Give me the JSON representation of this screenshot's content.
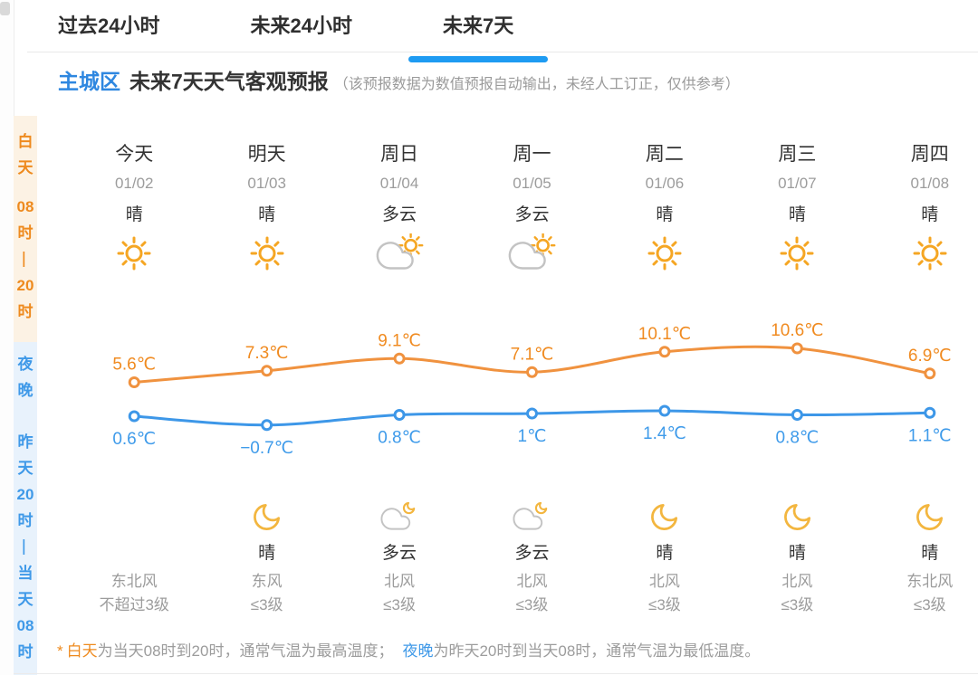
{
  "tabs": [
    {
      "label": "过去24小时",
      "active": false
    },
    {
      "label": "未来24小时",
      "active": false
    },
    {
      "label": "未来7天",
      "active": true
    }
  ],
  "header": {
    "region": "主城区",
    "title": "未来7天天气客观预报",
    "note": "（该预报数据为数值预报自动输出，未经人工订正，仅供参考）"
  },
  "sidebar": {
    "day": {
      "label": "白天",
      "time": "08时—20时"
    },
    "night": {
      "label": "夜晚",
      "time": "昨天20时—当天08时"
    }
  },
  "columns": [
    {
      "day": "今天",
      "date": "01/02",
      "day_cond": "晴",
      "day_icon": "sun",
      "night_cond": "",
      "night_icon": "none",
      "wind_dir": "东北风",
      "wind_scale": "不超过3级"
    },
    {
      "day": "明天",
      "date": "01/03",
      "day_cond": "晴",
      "day_icon": "sun",
      "night_cond": "晴",
      "night_icon": "moon",
      "wind_dir": "东风",
      "wind_scale": "≤3级"
    },
    {
      "day": "周日",
      "date": "01/04",
      "day_cond": "多云",
      "day_icon": "cloud-sun",
      "night_cond": "多云",
      "night_icon": "cloud-moon",
      "wind_dir": "北风",
      "wind_scale": "≤3级"
    },
    {
      "day": "周一",
      "date": "01/05",
      "day_cond": "多云",
      "day_icon": "cloud-sun",
      "night_cond": "多云",
      "night_icon": "cloud-moon",
      "wind_dir": "北风",
      "wind_scale": "≤3级"
    },
    {
      "day": "周二",
      "date": "01/06",
      "day_cond": "晴",
      "day_icon": "sun",
      "night_cond": "晴",
      "night_icon": "moon",
      "wind_dir": "北风",
      "wind_scale": "≤3级"
    },
    {
      "day": "周三",
      "date": "01/07",
      "day_cond": "晴",
      "day_icon": "sun",
      "night_cond": "晴",
      "night_icon": "moon",
      "wind_dir": "北风",
      "wind_scale": "≤3级"
    },
    {
      "day": "周四",
      "date": "01/08",
      "day_cond": "晴",
      "day_icon": "sun",
      "night_cond": "晴",
      "night_icon": "moon",
      "wind_dir": "东北风",
      "wind_scale": "≤3级"
    }
  ],
  "chart_data": {
    "type": "line",
    "categories": [
      "今天 01/02",
      "明天 01/03",
      "周日 01/04",
      "周一 01/05",
      "周二 01/06",
      "周三 01/07",
      "周四 01/08"
    ],
    "series": [
      {
        "name": "白天最高气温",
        "color": "#f0923f",
        "label_color": "#f08b21",
        "values": [
          5.6,
          7.3,
          9.1,
          7.1,
          10.1,
          10.6,
          6.9
        ],
        "labels": [
          "5.6℃",
          "7.3℃",
          "9.1℃",
          "7.1℃",
          "10.1℃",
          "10.6℃",
          "6.9℃"
        ]
      },
      {
        "name": "夜晚最低气温",
        "color": "#3d97e8",
        "label_color": "#3f9bea",
        "values": [
          0.6,
          -0.7,
          0.8,
          1,
          1.4,
          0.8,
          1.1
        ],
        "labels": [
          "0.6℃",
          "−0.7℃",
          "0.8℃",
          "1℃",
          "1.4℃",
          "0.8℃",
          "1.1℃"
        ]
      }
    ],
    "unit": "℃",
    "grid": false,
    "legend": "none"
  },
  "footnote": {
    "star": "*",
    "day_label": "白天",
    "day_text": "为当天08时到20时，通常气温为最高温度；",
    "night_label": "夜晚",
    "night_text": "为昨天20时到当天08时，通常气温为最低温度。"
  },
  "colors": {
    "sun": "#f5a623",
    "moon": "#f3b63f",
    "cloud": "#c3c3c3",
    "day_line": "#f0923f",
    "day_label": "#f08b21",
    "night_line": "#3d97e8",
    "night_label": "#3f9bea",
    "accent_blue": "#2e87e0",
    "tab_underline": "#1e9bf2",
    "sidebar_day_bg": "#fcf2e4",
    "sidebar_day_text": "#ee8a1e",
    "sidebar_night_bg": "#e8f2fc",
    "sidebar_night_text": "#3f99e8"
  }
}
